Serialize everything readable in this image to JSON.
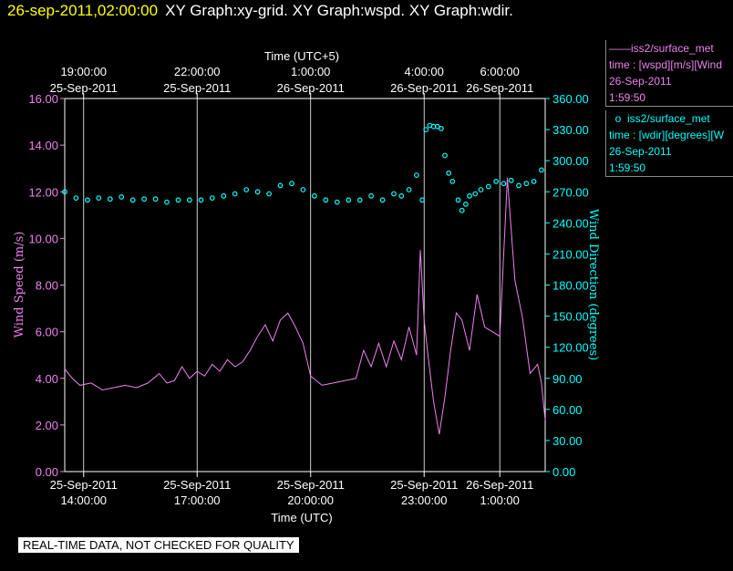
{
  "header": {
    "timestamp": "26-sep-2011,02:00:00",
    "graphs": "XY Graph:xy-grid.  XY Graph:wspd.  XY Graph:wdir."
  },
  "legend": {
    "wspd": {
      "line1": "iss2/surface_met",
      "line2": "time : [wspd][m/s][Wind",
      "line3": "26-Sep-2011",
      "line4": "1:59:50"
    },
    "wdir": {
      "line1": "iss2/surface_met",
      "line2": "time : [wdir][degrees][W",
      "line3": "26-Sep-2011",
      "line4": "1:59:50"
    }
  },
  "note": "REAL-TIME DATA, NOT CHECKED FOR QUALITY",
  "colors": {
    "wspd": "#ee82ee",
    "wdir": "#00ffff",
    "background": "#000000",
    "axis": "#ffffff"
  },
  "chart_data": {
    "type": "line",
    "top_axis_title": "Time (UTC+5)",
    "bottom_axis_title": "Time (UTC)",
    "ylabel_left": "Wind Speed (m/s)",
    "ylabel_right": "Wind Direction (degrees)",
    "x_range_utc_hours": [
      13.5,
      26.2
    ],
    "ylim_left": [
      0,
      16
    ],
    "ylim_right": [
      0,
      360
    ],
    "grid": "vertical lines at time ticks",
    "x_ticks_bottom": [
      {
        "x": 14,
        "date": "25-Sep-2011",
        "time": "14:00:00"
      },
      {
        "x": 17,
        "date": "25-Sep-2011",
        "time": "17:00:00"
      },
      {
        "x": 20,
        "date": "25-Sep-2011",
        "time": "20:00:00"
      },
      {
        "x": 23,
        "date": "25-Sep-2011",
        "time": "23:00:00"
      },
      {
        "x": 25,
        "date": "26-Sep-2011",
        "time": "1:00:00"
      }
    ],
    "x_ticks_top": [
      {
        "x": 14,
        "time": "19:00:00",
        "date": "25-Sep-2011"
      },
      {
        "x": 17,
        "time": "22:00:00",
        "date": "25-Sep-2011"
      },
      {
        "x": 20,
        "time": "1:00:00",
        "date": "26-Sep-2011"
      },
      {
        "x": 23,
        "time": "4:00:00",
        "date": "26-Sep-2011"
      },
      {
        "x": 25,
        "time": "6:00:00",
        "date": "26-Sep-2011"
      }
    ],
    "y_ticks_left": [
      "0.00",
      "2.00",
      "4.00",
      "6.00",
      "8.00",
      "10.00",
      "12.00",
      "14.00",
      "16.00"
    ],
    "y_ticks_right": [
      "0.00",
      "30.00",
      "60.00",
      "90.00",
      "120.00",
      "150.00",
      "180.00",
      "210.00",
      "240.00",
      "270.00",
      "300.00",
      "330.00",
      "360.00"
    ],
    "series": [
      {
        "name": "iss2/surface_met time : [wspd][m/s]",
        "axis": "left",
        "style": "line",
        "x": [
          13.5,
          13.7,
          13.9,
          14.2,
          14.5,
          14.8,
          15.1,
          15.4,
          15.7,
          16.0,
          16.2,
          16.4,
          16.6,
          16.8,
          17.0,
          17.2,
          17.4,
          17.6,
          17.8,
          18.0,
          18.2,
          18.4,
          18.6,
          18.8,
          19.0,
          19.2,
          19.4,
          19.6,
          19.8,
          20.0,
          20.3,
          20.6,
          20.9,
          21.2,
          21.4,
          21.6,
          21.8,
          22.0,
          22.2,
          22.4,
          22.6,
          22.8,
          22.9,
          23.0,
          23.1,
          23.25,
          23.4,
          23.55,
          23.7,
          23.85,
          24.0,
          24.2,
          24.4,
          24.6,
          24.8,
          25.0,
          25.2,
          25.4,
          25.6,
          25.8,
          26.0,
          26.1,
          26.2
        ],
        "y": [
          4.4,
          4.0,
          3.7,
          3.8,
          3.5,
          3.6,
          3.7,
          3.6,
          3.8,
          4.2,
          3.8,
          3.9,
          4.5,
          4.0,
          4.3,
          4.1,
          4.6,
          4.3,
          4.8,
          4.5,
          4.7,
          5.2,
          5.8,
          6.3,
          5.6,
          6.5,
          6.8,
          6.2,
          5.5,
          4.1,
          3.7,
          3.8,
          3.9,
          4.0,
          5.2,
          4.5,
          5.5,
          4.5,
          5.6,
          4.8,
          6.2,
          5.0,
          9.5,
          6.5,
          5.0,
          3.0,
          1.6,
          3.2,
          5.2,
          6.8,
          6.5,
          5.2,
          7.6,
          6.2,
          6.0,
          5.8,
          12.6,
          8.2,
          6.6,
          4.2,
          4.6,
          3.8,
          2.2
        ]
      },
      {
        "name": "iss2/surface_met time : [wdir][degrees]",
        "axis": "right",
        "style": "circles",
        "x": [
          13.5,
          13.8,
          14.1,
          14.4,
          14.7,
          15.0,
          15.3,
          15.6,
          15.9,
          16.2,
          16.5,
          16.8,
          17.1,
          17.4,
          17.7,
          18.0,
          18.3,
          18.6,
          18.9,
          19.2,
          19.5,
          19.8,
          20.1,
          20.4,
          20.7,
          21.0,
          21.3,
          21.6,
          21.9,
          22.2,
          22.4,
          22.6,
          22.8,
          22.95,
          23.05,
          23.15,
          23.25,
          23.35,
          23.45,
          23.55,
          23.65,
          23.75,
          23.9,
          24.0,
          24.1,
          24.2,
          24.35,
          24.5,
          24.7,
          24.9,
          25.1,
          25.3,
          25.5,
          25.7,
          25.9,
          26.1
        ],
        "y": [
          270,
          264,
          262,
          264,
          263,
          265,
          262,
          263,
          263,
          260,
          262,
          262,
          262,
          264,
          266,
          268,
          272,
          270,
          268,
          276,
          278,
          272,
          266,
          262,
          260,
          262,
          262,
          266,
          262,
          268,
          266,
          272,
          286,
          262,
          330,
          334,
          333,
          333,
          331,
          305,
          288,
          280,
          262,
          252,
          258,
          266,
          268,
          272,
          275,
          280,
          278,
          281,
          276,
          278,
          280,
          291
        ]
      }
    ]
  }
}
